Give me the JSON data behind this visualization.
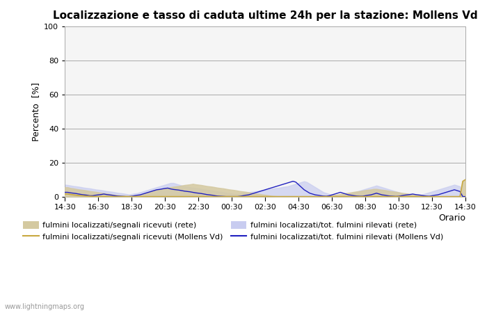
{
  "title": "Localizzazione e tasso di caduta ultime 24h per la stazione: Mollens Vd",
  "ylabel": "Percento  [%]",
  "xlabel": "Orario",
  "xlim_labels": [
    "14:30",
    "16:30",
    "18:30",
    "20:30",
    "22:30",
    "00:30",
    "02:30",
    "04:30",
    "06:30",
    "08:30",
    "10:30",
    "12:30",
    "14:30"
  ],
  "ylim": [
    0,
    100
  ],
  "yticks": [
    0,
    20,
    40,
    60,
    80,
    100
  ],
  "background_color": "#ffffff",
  "plot_bg_color": "#f5f5f5",
  "watermark": "www.lightningmaps.org",
  "legend_entries": [
    "fulmini localizzati/segnali ricevuti (rete)",
    "fulmini localizzati/segnali ricevuti (Mollens Vd)",
    "fulmini localizzati/tot. fulmini rilevati (rete)",
    "fulmini localizzati/tot. fulmini rilevati (Mollens Vd)"
  ],
  "fill_rete_color": "#d4c9a0",
  "fill_mollens_color": "#c8ccf0",
  "line_rete_color": "#c8a840",
  "line_mollens_color": "#2020c0",
  "n_points": 145,
  "rete_fill": [
    5.5,
    5.5,
    5.0,
    4.8,
    4.5,
    4.2,
    4.0,
    3.8,
    3.5,
    3.2,
    3.0,
    2.8,
    2.5,
    2.2,
    2.0,
    1.8,
    1.5,
    1.2,
    1.0,
    0.8,
    0.6,
    0.5,
    0.4,
    0.3,
    0.5,
    0.6,
    0.8,
    1.0,
    1.5,
    2.0,
    2.5,
    3.0,
    3.5,
    4.0,
    4.2,
    4.5,
    4.8,
    5.0,
    5.5,
    5.8,
    6.0,
    6.2,
    6.5,
    6.8,
    7.0,
    7.2,
    7.5,
    7.2,
    7.0,
    6.8,
    6.5,
    6.2,
    6.0,
    5.8,
    5.5,
    5.2,
    5.0,
    4.8,
    4.5,
    4.2,
    4.0,
    3.8,
    3.5,
    3.2,
    3.0,
    2.8,
    2.5,
    2.2,
    2.0,
    1.8,
    1.5,
    1.2,
    1.0,
    0.8,
    0.5,
    0.3,
    0.2,
    0.1,
    0.0,
    0.0,
    0.0,
    0.0,
    0.0,
    0.0,
    0.0,
    0.0,
    0.0,
    0.0,
    0.0,
    0.0,
    0.0,
    0.0,
    0.1,
    0.2,
    0.3,
    0.5,
    0.8,
    1.0,
    1.2,
    1.5,
    1.8,
    2.0,
    2.2,
    2.5,
    2.8,
    3.0,
    3.2,
    3.5,
    3.8,
    4.0,
    4.2,
    4.5,
    4.5,
    4.2,
    4.0,
    3.8,
    3.5,
    3.2,
    3.0,
    2.8,
    2.5,
    2.2,
    2.0,
    1.8,
    1.5,
    1.2,
    1.0,
    0.8,
    0.5,
    0.3,
    0.2,
    0.1,
    0.0,
    0.0,
    0.0,
    0.0,
    0.0,
    0.0,
    0.0,
    0.0,
    0.0,
    0.0,
    0.0,
    9.0,
    10.0
  ],
  "mollens_fill": [
    7.0,
    6.8,
    6.5,
    6.2,
    6.0,
    5.8,
    5.5,
    5.2,
    5.0,
    4.8,
    4.5,
    4.2,
    4.0,
    3.8,
    3.5,
    3.2,
    3.0,
    2.8,
    2.5,
    2.2,
    2.0,
    1.8,
    1.5,
    1.2,
    1.5,
    1.8,
    2.0,
    2.5,
    3.0,
    3.5,
    4.0,
    4.5,
    5.0,
    5.5,
    6.0,
    6.5,
    7.0,
    7.5,
    8.0,
    8.0,
    7.5,
    7.0,
    6.5,
    6.0,
    5.8,
    5.5,
    5.2,
    5.0,
    4.8,
    4.5,
    4.2,
    4.0,
    3.8,
    3.5,
    3.2,
    3.0,
    2.8,
    2.5,
    2.2,
    2.0,
    1.8,
    1.5,
    1.5,
    1.8,
    2.0,
    2.2,
    2.5,
    2.8,
    3.0,
    3.2,
    3.5,
    3.8,
    4.0,
    4.2,
    4.5,
    4.8,
    5.0,
    5.2,
    5.5,
    5.8,
    6.0,
    6.5,
    7.0,
    7.5,
    8.0,
    8.5,
    9.0,
    8.5,
    7.5,
    6.5,
    5.5,
    4.5,
    3.5,
    2.5,
    2.0,
    1.5,
    1.0,
    0.8,
    0.5,
    0.5,
    0.8,
    1.0,
    1.5,
    2.0,
    2.5,
    3.0,
    3.5,
    4.0,
    4.5,
    5.0,
    5.5,
    6.0,
    6.5,
    6.0,
    5.5,
    5.0,
    4.5,
    4.0,
    3.5,
    3.0,
    2.5,
    2.0,
    1.5,
    1.0,
    0.8,
    0.5,
    0.5,
    0.8,
    1.0,
    1.5,
    2.0,
    2.5,
    3.0,
    3.5,
    4.0,
    4.5,
    5.0,
    5.5,
    6.0,
    6.5,
    7.0,
    6.5,
    6.0,
    0.0,
    0.0
  ],
  "rete_line": [
    1.5,
    1.5,
    1.2,
    1.0,
    0.8,
    0.6,
    0.5,
    0.4,
    0.3,
    0.2,
    0.1,
    0.0,
    0.0,
    0.0,
    0.0,
    0.0,
    0.0,
    0.0,
    0.0,
    0.0,
    0.0,
    0.0,
    0.0,
    0.0,
    0.0,
    0.0,
    0.0,
    0.0,
    0.0,
    0.0,
    0.0,
    0.0,
    0.0,
    0.0,
    0.0,
    0.0,
    0.0,
    0.0,
    0.0,
    0.0,
    0.0,
    0.0,
    0.0,
    0.0,
    0.0,
    0.0,
    0.0,
    0.0,
    0.0,
    0.0,
    0.0,
    0.0,
    0.0,
    0.0,
    0.0,
    0.0,
    0.0,
    0.0,
    0.0,
    0.0,
    0.0,
    0.0,
    0.0,
    0.0,
    0.0,
    0.0,
    0.0,
    0.0,
    0.0,
    0.0,
    0.0,
    0.0,
    0.0,
    0.0,
    0.0,
    0.0,
    0.0,
    0.0,
    0.0,
    0.0,
    0.0,
    0.0,
    0.0,
    0.0,
    0.0,
    0.0,
    0.0,
    0.0,
    0.0,
    0.0,
    0.0,
    0.0,
    0.0,
    0.0,
    0.0,
    0.0,
    0.0,
    0.0,
    0.0,
    0.0,
    0.0,
    0.0,
    0.0,
    0.0,
    0.0,
    0.0,
    0.0,
    0.0,
    0.0,
    0.0,
    0.0,
    0.0,
    0.0,
    0.0,
    0.0,
    0.0,
    0.0,
    0.0,
    0.0,
    0.0,
    0.0,
    0.0,
    0.0,
    0.0,
    0.0,
    0.0,
    0.0,
    0.0,
    0.0,
    0.0,
    0.0,
    0.0,
    0.0,
    0.0,
    0.0,
    0.0,
    0.0,
    0.0,
    0.0,
    0.0,
    0.0,
    0.0,
    0.0,
    9.0,
    10.0
  ],
  "mollens_line": [
    2.5,
    2.5,
    2.2,
    2.0,
    1.8,
    1.5,
    1.2,
    1.0,
    0.8,
    0.5,
    0.5,
    0.8,
    1.0,
    1.2,
    1.5,
    1.2,
    1.0,
    0.8,
    0.5,
    0.3,
    0.2,
    0.1,
    0.0,
    0.0,
    0.2,
    0.5,
    0.8,
    1.0,
    1.5,
    2.0,
    2.5,
    3.0,
    3.5,
    4.0,
    4.2,
    4.5,
    4.8,
    5.0,
    4.5,
    4.2,
    4.0,
    3.8,
    3.5,
    3.2,
    3.0,
    2.8,
    2.5,
    2.2,
    2.0,
    1.8,
    1.5,
    1.2,
    1.0,
    0.8,
    0.5,
    0.3,
    0.2,
    0.1,
    0.0,
    0.0,
    0.0,
    0.0,
    0.0,
    0.2,
    0.5,
    0.8,
    1.0,
    1.5,
    2.0,
    2.5,
    3.0,
    3.5,
    4.0,
    4.5,
    5.0,
    5.5,
    6.0,
    6.5,
    7.0,
    7.5,
    8.0,
    8.5,
    9.0,
    8.5,
    7.0,
    5.5,
    4.0,
    3.0,
    2.0,
    1.5,
    1.0,
    0.8,
    0.5,
    0.3,
    0.2,
    0.5,
    1.0,
    1.5,
    2.0,
    2.5,
    2.0,
    1.5,
    1.0,
    0.8,
    0.5,
    0.3,
    0.2,
    0.2,
    0.5,
    0.8,
    1.0,
    1.5,
    2.0,
    1.5,
    1.0,
    0.8,
    0.5,
    0.3,
    0.2,
    0.1,
    0.2,
    0.5,
    0.8,
    1.0,
    1.2,
    1.5,
    1.2,
    1.0,
    0.8,
    0.5,
    0.3,
    0.2,
    0.5,
    0.8,
    1.0,
    1.5,
    2.0,
    2.5,
    3.0,
    3.5,
    4.0,
    3.5,
    3.0,
    0.0,
    0.0
  ]
}
